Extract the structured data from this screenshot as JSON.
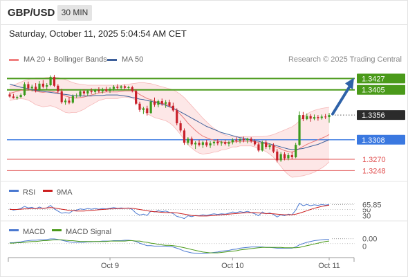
{
  "header": {
    "symbol": "GBP/USD",
    "timeframe": "30 MIN",
    "datetime": "Saturday, October 11, 2025 5:04:54 AM CET"
  },
  "legend": {
    "bollinger_label": "MA 20 + Bollinger Bands",
    "ma50_label": "MA 50",
    "credit": "Research © 2025 Trading Central"
  },
  "colors": {
    "bollinger": "#f08080",
    "bollinger_fill": "#fde3e3",
    "ma50": "#3d5f9a",
    "resistance": "#4a9a1a",
    "support": "#3a78e0",
    "level_red": "#e05050",
    "price_tag": "#2b2b2b",
    "arrow": "#2e62a8",
    "candle": "#c8202a",
    "candle_up": "#3b9a1c",
    "rsi": "#4a78d0",
    "rsi_ma": "#cc1f1f",
    "macd": "#4a78d0",
    "macd_signal": "#4a9a1a"
  },
  "chart_data": {
    "type": "candlestick",
    "x_ticks": [
      "Oct 9",
      "Oct 10",
      "Oct 11"
    ],
    "price_range": [
      1.3235,
      1.3445
    ],
    "levels": [
      {
        "value": 1.3427,
        "label": "1.3427",
        "kind": "resistance"
      },
      {
        "value": 1.3405,
        "label": "1.3405",
        "kind": "resistance"
      },
      {
        "value": 1.3356,
        "label": "1.3356",
        "kind": "last_price"
      },
      {
        "value": 1.3308,
        "label": "1.3308",
        "kind": "support"
      },
      {
        "value": 1.327,
        "label": "1.3270",
        "kind": "level"
      },
      {
        "value": 1.3248,
        "label": "1.3248",
        "kind": "level"
      }
    ],
    "candles": [
      [
        1.3396,
        1.34,
        1.339,
        1.3392
      ],
      [
        1.3392,
        1.3397,
        1.3388,
        1.3389
      ],
      [
        1.3389,
        1.3394,
        1.3386,
        1.3391
      ],
      [
        1.3391,
        1.3398,
        1.3389,
        1.3395
      ],
      [
        1.3395,
        1.342,
        1.3393,
        1.3416
      ],
      [
        1.3416,
        1.3421,
        1.3404,
        1.3408
      ],
      [
        1.3408,
        1.3415,
        1.3402,
        1.3411
      ],
      [
        1.3411,
        1.3418,
        1.34,
        1.3404
      ],
      [
        1.3404,
        1.3422,
        1.3402,
        1.3417
      ],
      [
        1.3417,
        1.3424,
        1.3408,
        1.3411
      ],
      [
        1.3411,
        1.3418,
        1.3405,
        1.3414
      ],
      [
        1.3414,
        1.3433,
        1.3412,
        1.343
      ],
      [
        1.343,
        1.3434,
        1.341,
        1.3413
      ],
      [
        1.3413,
        1.3416,
        1.3398,
        1.3402
      ],
      [
        1.3402,
        1.3407,
        1.3378,
        1.3381
      ],
      [
        1.3381,
        1.3388,
        1.3376,
        1.3384
      ],
      [
        1.3384,
        1.3391,
        1.3377,
        1.338
      ],
      [
        1.338,
        1.3396,
        1.3378,
        1.3393
      ],
      [
        1.3393,
        1.3398,
        1.3389,
        1.3394
      ],
      [
        1.3394,
        1.3406,
        1.3391,
        1.3402
      ],
      [
        1.3402,
        1.3406,
        1.3394,
        1.3398
      ],
      [
        1.3398,
        1.3405,
        1.3393,
        1.3403
      ],
      [
        1.3403,
        1.3408,
        1.3397,
        1.3401
      ],
      [
        1.3401,
        1.3407,
        1.3396,
        1.3404
      ],
      [
        1.3404,
        1.341,
        1.3399,
        1.3402
      ],
      [
        1.3402,
        1.3409,
        1.3398,
        1.3406
      ],
      [
        1.3406,
        1.3411,
        1.3401,
        1.3403
      ],
      [
        1.3403,
        1.341,
        1.3399,
        1.3407
      ],
      [
        1.3407,
        1.3414,
        1.3403,
        1.3411
      ],
      [
        1.3411,
        1.3416,
        1.3405,
        1.3409
      ],
      [
        1.3409,
        1.3414,
        1.3404,
        1.3412
      ],
      [
        1.3412,
        1.3415,
        1.3406,
        1.3409
      ],
      [
        1.3409,
        1.3413,
        1.3404,
        1.341
      ],
      [
        1.341,
        1.3413,
        1.34,
        1.3403
      ],
      [
        1.3403,
        1.3406,
        1.3375,
        1.3378
      ],
      [
        1.3378,
        1.3382,
        1.3362,
        1.3366
      ],
      [
        1.3366,
        1.3372,
        1.3358,
        1.3369
      ],
      [
        1.3369,
        1.3374,
        1.3355,
        1.336
      ],
      [
        1.336,
        1.3386,
        1.3358,
        1.3382
      ],
      [
        1.3382,
        1.339,
        1.3372,
        1.3376
      ],
      [
        1.3376,
        1.3386,
        1.3371,
        1.3383
      ],
      [
        1.3383,
        1.3388,
        1.3374,
        1.3378
      ],
      [
        1.3378,
        1.3385,
        1.337,
        1.3381
      ],
      [
        1.3381,
        1.3386,
        1.3371,
        1.3374
      ],
      [
        1.3374,
        1.338,
        1.3362,
        1.3365
      ],
      [
        1.3365,
        1.3369,
        1.3336,
        1.334
      ],
      [
        1.334,
        1.3345,
        1.3322,
        1.3326
      ],
      [
        1.3326,
        1.333,
        1.3298,
        1.3302
      ],
      [
        1.3302,
        1.3313,
        1.3298,
        1.331
      ],
      [
        1.331,
        1.3314,
        1.3296,
        1.3299
      ],
      [
        1.3299,
        1.3305,
        1.329,
        1.3302
      ],
      [
        1.3302,
        1.3308,
        1.3295,
        1.3298
      ],
      [
        1.3298,
        1.3306,
        1.3292,
        1.3303
      ],
      [
        1.3303,
        1.3308,
        1.3294,
        1.3297
      ],
      [
        1.3297,
        1.3305,
        1.3292,
        1.3301
      ],
      [
        1.3301,
        1.3307,
        1.3296,
        1.3304
      ],
      [
        1.3304,
        1.3309,
        1.3297,
        1.3301
      ],
      [
        1.3301,
        1.3306,
        1.3296,
        1.3303
      ],
      [
        1.3303,
        1.3308,
        1.3297,
        1.33
      ],
      [
        1.33,
        1.3306,
        1.3295,
        1.3303
      ],
      [
        1.3303,
        1.3311,
        1.3299,
        1.3308
      ],
      [
        1.3308,
        1.3313,
        1.3302,
        1.3306
      ],
      [
        1.3306,
        1.3311,
        1.3301,
        1.3309
      ],
      [
        1.3309,
        1.3314,
        1.3303,
        1.3307
      ],
      [
        1.3307,
        1.3312,
        1.3301,
        1.331
      ],
      [
        1.331,
        1.3313,
        1.3302,
        1.3305
      ],
      [
        1.3305,
        1.3309,
        1.3296,
        1.3299
      ],
      [
        1.3299,
        1.3303,
        1.3284,
        1.3287
      ],
      [
        1.3287,
        1.3306,
        1.3285,
        1.3303
      ],
      [
        1.3303,
        1.3307,
        1.329,
        1.3294
      ],
      [
        1.3294,
        1.3301,
        1.3289,
        1.3297
      ],
      [
        1.3297,
        1.3301,
        1.3282,
        1.3285
      ],
      [
        1.3285,
        1.329,
        1.3264,
        1.3268
      ],
      [
        1.3268,
        1.3284,
        1.3265,
        1.328
      ],
      [
        1.328,
        1.3284,
        1.3268,
        1.3272
      ],
      [
        1.3272,
        1.3282,
        1.3268,
        1.3278
      ],
      [
        1.3278,
        1.3285,
        1.327,
        1.3274
      ],
      [
        1.3274,
        1.3302,
        1.3272,
        1.3298
      ],
      [
        1.3298,
        1.3363,
        1.3296,
        1.3356
      ],
      [
        1.3356,
        1.3362,
        1.3344,
        1.3348
      ],
      [
        1.3348,
        1.3359,
        1.3346,
        1.3354
      ],
      [
        1.3354,
        1.3358,
        1.3343,
        1.3349
      ],
      [
        1.3349,
        1.3357,
        1.3346,
        1.3352
      ],
      [
        1.3352,
        1.3356,
        1.3345,
        1.335
      ],
      [
        1.335,
        1.3357,
        1.3347,
        1.3353
      ],
      [
        1.3353,
        1.3358,
        1.3348,
        1.3352
      ],
      [
        1.3352,
        1.336,
        1.3341,
        1.3356
      ]
    ],
    "ma20": [
      1.3398,
      1.34,
      1.3402,
      1.3404,
      1.3405,
      1.3405,
      1.3404,
      1.3402,
      1.3401,
      1.34,
      1.3401,
      1.3402,
      1.3401,
      1.3399,
      1.3396,
      1.3393,
      1.3391,
      1.339,
      1.3389,
      1.339,
      1.3391,
      1.3393,
      1.3395,
      1.3397,
      1.3399,
      1.34,
      1.3401,
      1.3401,
      1.3401,
      1.3401,
      1.3402,
      1.3403,
      1.3403,
      1.3403,
      1.3401,
      1.3396,
      1.3392,
      1.3388,
      1.3386,
      1.3383,
      1.3381,
      1.3379,
      1.3377,
      1.3374,
      1.337,
      1.3364,
      1.3357,
      1.3349,
      1.334,
      1.3333,
      1.3326,
      1.332,
      1.3315,
      1.3312,
      1.3309,
      1.3307,
      1.3305,
      1.3304,
      1.3303,
      1.3303,
      1.3304,
      1.3304,
      1.3305,
      1.3305,
      1.3305,
      1.3305,
      1.3304,
      1.3302,
      1.3301,
      1.33,
      1.3298,
      1.3296,
      1.3293,
      1.329,
      1.3287,
      1.3285,
      1.3284,
      1.3287,
      1.3291,
      1.3295,
      1.3299,
      1.3302,
      1.3305,
      1.3308,
      1.3311,
      1.3314,
      1.3318
    ],
    "bb_upper": [
      1.3412,
      1.3414,
      1.3417,
      1.342,
      1.3423,
      1.3425,
      1.3427,
      1.3428,
      1.3428,
      1.3428,
      1.3429,
      1.343,
      1.343,
      1.3429,
      1.3427,
      1.3425,
      1.3422,
      1.3419,
      1.3417,
      1.3416,
      1.3415,
      1.3414,
      1.3414,
      1.3414,
      1.3414,
      1.3414,
      1.3414,
      1.3414,
      1.3414,
      1.3414,
      1.3414,
      1.3415,
      1.3416,
      1.3417,
      1.3418,
      1.3419,
      1.3419,
      1.3418,
      1.3417,
      1.3415,
      1.3413,
      1.3411,
      1.3409,
      1.3407,
      1.3405,
      1.3401,
      1.3396,
      1.339,
      1.3382,
      1.3374,
      1.3366,
      1.3358,
      1.335,
      1.3343,
      1.3336,
      1.333,
      1.3325,
      1.332,
      1.3317,
      1.3315,
      1.3314,
      1.3314,
      1.3314,
      1.3314,
      1.3314,
      1.3314,
      1.3314,
      1.3314,
      1.3314,
      1.3315,
      1.3316,
      1.3318,
      1.3321,
      1.3324,
      1.3327,
      1.333,
      1.3333,
      1.3338,
      1.3345,
      1.3352,
      1.3358,
      1.3362,
      1.3365,
      1.3367,
      1.3369,
      1.337,
      1.3371
    ],
    "bb_lower": [
      1.3384,
      1.3386,
      1.3387,
      1.3388,
      1.3387,
      1.3385,
      1.3381,
      1.3376,
      1.3374,
      1.3372,
      1.3373,
      1.3374,
      1.3372,
      1.3369,
      1.3365,
      1.3361,
      1.336,
      1.3361,
      1.3361,
      1.3364,
      1.3367,
      1.3372,
      1.3376,
      1.338,
      1.3384,
      1.3386,
      1.3388,
      1.3388,
      1.3388,
      1.3388,
      1.339,
      1.3391,
      1.339,
      1.3389,
      1.3384,
      1.3373,
      1.3365,
      1.3358,
      1.3355,
      1.3351,
      1.3349,
      1.3347,
      1.3345,
      1.3341,
      1.3335,
      1.3327,
      1.3318,
      1.3308,
      1.3298,
      1.3292,
      1.3286,
      1.3282,
      1.328,
      1.3281,
      1.3282,
      1.3284,
      1.3285,
      1.3288,
      1.3289,
      1.3291,
      1.3294,
      1.3294,
      1.3296,
      1.3296,
      1.3296,
      1.3296,
      1.3294,
      1.329,
      1.3288,
      1.3285,
      1.328,
      1.3274,
      1.3265,
      1.3256,
      1.3247,
      1.324,
      1.3235,
      1.3236,
      1.3237,
      1.3238,
      1.324,
      1.3242,
      1.3245,
      1.3249,
      1.3253,
      1.3258,
      1.3265
    ],
    "ma50": [
      1.3416,
      1.3414,
      1.3412,
      1.341,
      1.3409,
      1.3407,
      1.3405,
      1.3404,
      1.3403,
      1.3402,
      1.3401,
      1.34,
      1.3399,
      1.3398,
      1.3397,
      1.3396,
      1.3395,
      1.3394,
      1.3393,
      1.3393,
      1.3393,
      1.3393,
      1.3393,
      1.3394,
      1.3394,
      1.3394,
      1.3395,
      1.3395,
      1.3395,
      1.3395,
      1.3394,
      1.3393,
      1.3392,
      1.339,
      1.3389,
      1.3387,
      1.3386,
      1.3384,
      1.3383,
      1.3381,
      1.3379,
      1.3377,
      1.3375,
      1.3372,
      1.3369,
      1.3366,
      1.3362,
      1.3358,
      1.3354,
      1.335,
      1.3346,
      1.3342,
      1.3338,
      1.3334,
      1.3331,
      1.3328,
      1.3325,
      1.3322,
      1.332,
      1.3318,
      1.3316,
      1.3314,
      1.3312,
      1.3311,
      1.3309,
      1.3308,
      1.3306,
      1.3305,
      1.3303,
      1.3302,
      1.33,
      1.3298,
      1.3296,
      1.3294,
      1.3292,
      1.329,
      1.3289,
      1.3289,
      1.329,
      1.3291,
      1.3293,
      1.3295,
      1.3297,
      1.3299,
      1.3302,
      1.3305,
      1.3308
    ],
    "rsi": {
      "label": "RSI",
      "ma_label": "9MA",
      "last_value": "65.85",
      "ticks": [
        "70",
        "50",
        "30"
      ],
      "range": [
        20,
        80
      ],
      "values": [
        52,
        48,
        50,
        53,
        60,
        55,
        57,
        52,
        58,
        53,
        55,
        63,
        52,
        45,
        38,
        40,
        38,
        46,
        48,
        52,
        50,
        53,
        51,
        53,
        51,
        53,
        52,
        54,
        56,
        54,
        55,
        54,
        55,
        50,
        38,
        32,
        35,
        31,
        45,
        42,
        46,
        43,
        45,
        41,
        37,
        28,
        25,
        21,
        30,
        27,
        31,
        30,
        33,
        31,
        34,
        36,
        34,
        36,
        35,
        38,
        42,
        40,
        43,
        41,
        44,
        40,
        36,
        30,
        42,
        36,
        39,
        34,
        26,
        33,
        30,
        35,
        33,
        48,
        70,
        62,
        66,
        62,
        65,
        63,
        66,
        64,
        66
      ],
      "ma_values": [
        50,
        50,
        50,
        51,
        52,
        52,
        53,
        53,
        54,
        54,
        55,
        56,
        55,
        53,
        51,
        49,
        47,
        46,
        45,
        45,
        45,
        46,
        47,
        48,
        49,
        50,
        51,
        52,
        52,
        53,
        53,
        54,
        54,
        54,
        52,
        50,
        48,
        46,
        44,
        43,
        42,
        41,
        40,
        40,
        40,
        39,
        37,
        35,
        33,
        31,
        30,
        29,
        29,
        29,
        30,
        31,
        32,
        33,
        34,
        35,
        36,
        37,
        38,
        39,
        40,
        40,
        40,
        39,
        38,
        37,
        37,
        36,
        35,
        34,
        33,
        33,
        33,
        35,
        38,
        42,
        46,
        50,
        54,
        57,
        60,
        62,
        64
      ]
    },
    "macd": {
      "label": "MACD",
      "signal_label": "MACD Signal",
      "last_value": "0.00",
      "ticks": [
        "0"
      ],
      "range": [
        -0.003,
        0.0016
      ],
      "values": [
        0.0002,
        0.0002,
        0.0003,
        0.0004,
        0.0006,
        0.0007,
        0.0008,
        0.0008,
        0.0009,
        0.0009,
        0.001,
        0.0011,
        0.0011,
        0.001,
        0.0008,
        0.0006,
        0.0004,
        0.0003,
        0.0003,
        0.0003,
        0.0003,
        0.0004,
        0.0004,
        0.0005,
        0.0005,
        0.0006,
        0.0006,
        0.0006,
        0.0007,
        0.0007,
        0.0007,
        0.0008,
        0.0008,
        0.0007,
        0.0005,
        0.0001,
        -0.0002,
        -0.0005,
        -0.0005,
        -0.0006,
        -0.0006,
        -0.0006,
        -0.0006,
        -0.0007,
        -0.0008,
        -0.0011,
        -0.0014,
        -0.0018,
        -0.002,
        -0.0022,
        -0.0023,
        -0.0024,
        -0.0024,
        -0.0023,
        -0.0022,
        -0.0021,
        -0.002,
        -0.0018,
        -0.0017,
        -0.0016,
        -0.0014,
        -0.0013,
        -0.0011,
        -0.001,
        -0.0009,
        -0.0008,
        -0.0008,
        -0.0008,
        -0.0008,
        -0.0009,
        -0.0009,
        -0.001,
        -0.0011,
        -0.0011,
        -0.0011,
        -0.0011,
        -0.0011,
        -0.0008,
        -0.0003,
        0.0,
        0.0003,
        0.0005,
        0.0007,
        0.0008,
        0.0009,
        0.001,
        0.001
      ],
      "signal_values": [
        0.0001,
        0.0001,
        0.0002,
        0.0002,
        0.0003,
        0.0004,
        0.0005,
        0.0005,
        0.0006,
        0.0007,
        0.0007,
        0.0008,
        0.0009,
        0.0009,
        0.0009,
        0.0008,
        0.0007,
        0.0007,
        0.0006,
        0.0005,
        0.0005,
        0.0005,
        0.0005,
        0.0005,
        0.0005,
        0.0005,
        0.0005,
        0.0006,
        0.0006,
        0.0006,
        0.0006,
        0.0006,
        0.0007,
        0.0007,
        0.0006,
        0.0006,
        0.0004,
        0.0003,
        0.0001,
        0.0,
        -0.0002,
        -0.0003,
        -0.0004,
        -0.0004,
        -0.0005,
        -0.0006,
        -0.0008,
        -0.001,
        -0.0012,
        -0.0014,
        -0.0016,
        -0.0018,
        -0.002,
        -0.0021,
        -0.0022,
        -0.0022,
        -0.0022,
        -0.0021,
        -0.002,
        -0.0019,
        -0.0018,
        -0.0017,
        -0.0015,
        -0.0014,
        -0.0013,
        -0.0012,
        -0.0011,
        -0.001,
        -0.0009,
        -0.0009,
        -0.0009,
        -0.0009,
        -0.0009,
        -0.0009,
        -0.001,
        -0.001,
        -0.001,
        -0.001,
        -0.0009,
        -0.0007,
        -0.0005,
        -0.0003,
        -0.0001,
        0.0001,
        0.0003,
        0.0005,
        0.0006
      ]
    }
  }
}
